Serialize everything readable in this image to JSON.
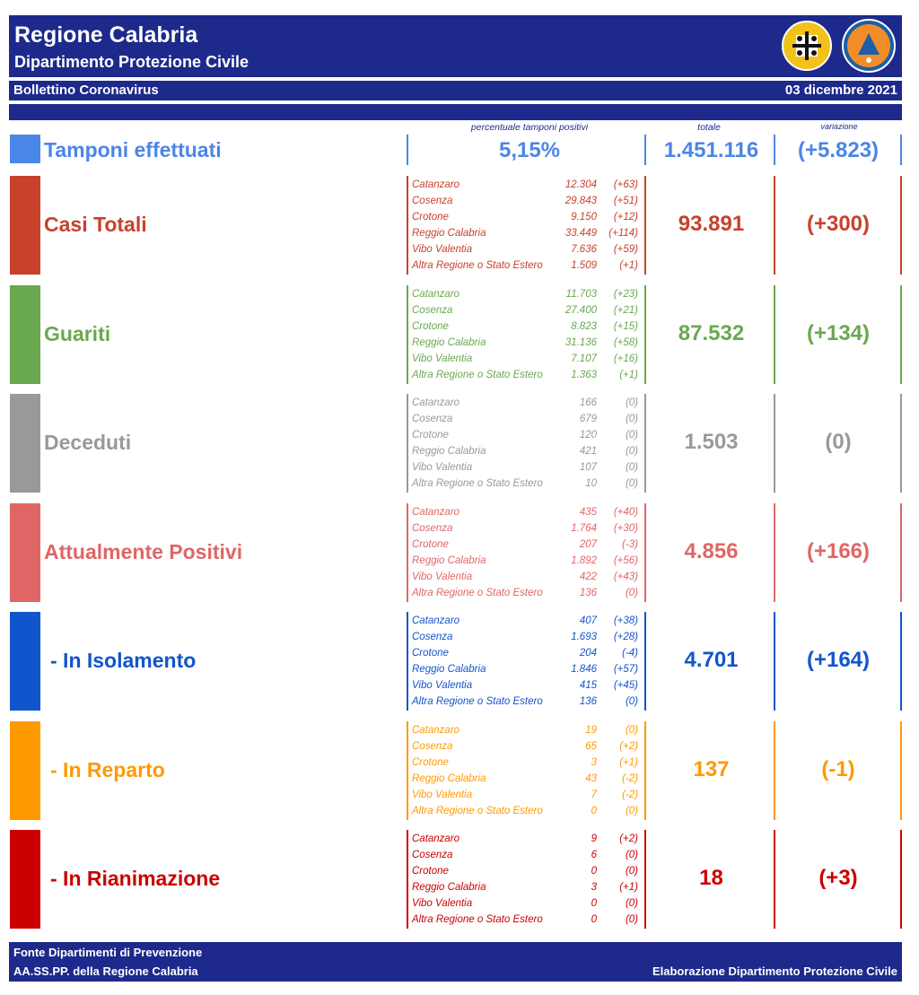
{
  "header": {
    "title": "Regione Calabria",
    "subtitle": "Dipartimento Protezione Civile",
    "bulletin": "Bollettino Coronavirus",
    "date": "03 dicembre 2021",
    "logo2_text": "PROTEZIONE CIVILE"
  },
  "captions": {
    "positivity": "percentuale tamponi positivi",
    "total": "totale",
    "change": "variazione"
  },
  "tamponi": {
    "label": "Tamponi effettuati",
    "percent": "5,15%",
    "total": "1.451.116",
    "change": "(+5.823)",
    "color": "#4a86e8"
  },
  "sections": [
    {
      "label": "Casi Totali",
      "color": "#c8412b",
      "total": "93.891",
      "change": "(+300)",
      "rows": [
        {
          "name": "Catanzaro",
          "value": "12.304",
          "delta": "(+63)"
        },
        {
          "name": "Cosenza",
          "value": "29.843",
          "delta": "(+51)"
        },
        {
          "name": "Crotone",
          "value": "9.150",
          "delta": "(+12)"
        },
        {
          "name": "Reggio Calabria",
          "value": "33.449",
          "delta": "(+114)"
        },
        {
          "name": "Vibo Valentia",
          "value": "7.636",
          "delta": "(+59)"
        },
        {
          "name": "Altra Regione o Stato Estero",
          "value": "1.509",
          "delta": "(+1)"
        }
      ]
    },
    {
      "label": "Guariti",
      "color": "#6aa84f",
      "total": "87.532",
      "change": "(+134)",
      "rows": [
        {
          "name": "Catanzaro",
          "value": "11.703",
          "delta": "(+23)"
        },
        {
          "name": "Cosenza",
          "value": "27.400",
          "delta": "(+21)"
        },
        {
          "name": "Crotone",
          "value": "8.823",
          "delta": "(+15)"
        },
        {
          "name": "Reggio Calabria",
          "value": "31.136",
          "delta": "(+58)"
        },
        {
          "name": "Vibo Valentia",
          "value": "7.107",
          "delta": "(+16)"
        },
        {
          "name": "Altra Regione o Stato Estero",
          "value": "1.363",
          "delta": "(+1)"
        }
      ]
    },
    {
      "label": "Deceduti",
      "color": "#999999",
      "total": "1.503",
      "change": "(0)",
      "rows": [
        {
          "name": "Catanzaro",
          "value": "166",
          "delta": "(0)"
        },
        {
          "name": "Cosenza",
          "value": "679",
          "delta": "(0)"
        },
        {
          "name": "Crotone",
          "value": "120",
          "delta": "(0)"
        },
        {
          "name": "Reggio Calabria",
          "value": "421",
          "delta": "(0)"
        },
        {
          "name": "Vibo Valentia",
          "value": "107",
          "delta": "(0)"
        },
        {
          "name": "Altra Regione o Stato Estero",
          "value": "10",
          "delta": "(0)"
        }
      ]
    },
    {
      "label": "Attualmente Positivi",
      "color": "#e06666",
      "total": "4.856",
      "change": "(+166)",
      "rows": [
        {
          "name": "Catanzaro",
          "value": "435",
          "delta": "(+40)"
        },
        {
          "name": "Cosenza",
          "value": "1.764",
          "delta": "(+30)"
        },
        {
          "name": "Crotone",
          "value": "207",
          "delta": "(-3)"
        },
        {
          "name": "Reggio Calabria",
          "value": "1.892",
          "delta": "(+56)"
        },
        {
          "name": "Vibo Valentia",
          "value": "422",
          "delta": "(+43)"
        },
        {
          "name": "Altra Regione o Stato Estero",
          "value": "136",
          "delta": "(0)"
        }
      ]
    },
    {
      "label": "- In Isolamento",
      "color": "#1155cc",
      "total": "4.701",
      "change": "(+164)",
      "rows": [
        {
          "name": "Catanzaro",
          "value": "407",
          "delta": "(+38)"
        },
        {
          "name": "Cosenza",
          "value": "1.693",
          "delta": "(+28)"
        },
        {
          "name": "Crotone",
          "value": "204",
          "delta": "(-4)"
        },
        {
          "name": "Reggio Calabria",
          "value": "1.846",
          "delta": "(+57)"
        },
        {
          "name": "Vibo Valentia",
          "value": "415",
          "delta": "(+45)"
        },
        {
          "name": "Altra Regione o Stato Estero",
          "value": "136",
          "delta": "(0)"
        }
      ]
    },
    {
      "label": "- In Reparto",
      "color": "#ff9900",
      "total": "137",
      "change": "(-1)",
      "rows": [
        {
          "name": "Catanzaro",
          "value": "19",
          "delta": "(0)"
        },
        {
          "name": "Cosenza",
          "value": "65",
          "delta": "(+2)"
        },
        {
          "name": "Crotone",
          "value": "3",
          "delta": "(+1)"
        },
        {
          "name": "Reggio Calabria",
          "value": "43",
          "delta": "(-2)"
        },
        {
          "name": "Vibo Valentia",
          "value": "7",
          "delta": "(-2)"
        },
        {
          "name": "Altra Regione o Stato Estero",
          "value": "0",
          "delta": "(0)"
        }
      ]
    },
    {
      "label": "- In Rianimazione",
      "color": "#cc0000",
      "total": "18",
      "change": "(+3)",
      "rows": [
        {
          "name": "Catanzaro",
          "value": "9",
          "delta": "(+2)"
        },
        {
          "name": "Cosenza",
          "value": "6",
          "delta": "(0)"
        },
        {
          "name": "Crotone",
          "value": "0",
          "delta": "(0)"
        },
        {
          "name": "Reggio Calabria",
          "value": "3",
          "delta": "(+1)"
        },
        {
          "name": "Vibo Valentia",
          "value": "0",
          "delta": "(0)"
        },
        {
          "name": "Altra Regione o Stato Estero",
          "value": "0",
          "delta": "(0)"
        }
      ]
    }
  ],
  "footer": {
    "line1": "Fonte Dipartimenti di Prevenzione",
    "line2": "AA.SS.PP.  della Regione Calabria",
    "credit": "Elaborazione Dipartimento Protezione Civile"
  }
}
